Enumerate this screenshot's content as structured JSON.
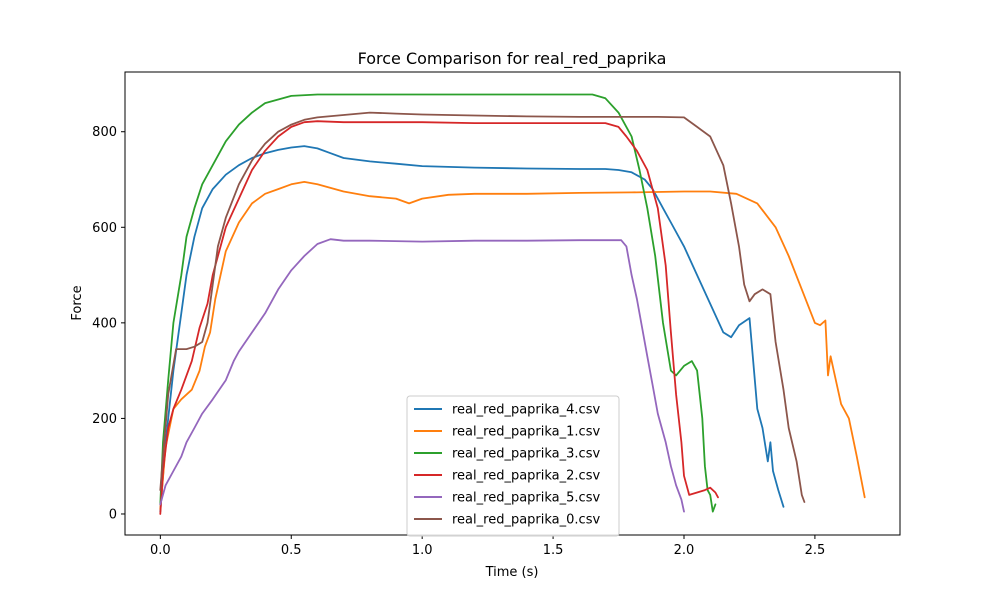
{
  "chart_data": {
    "type": "line",
    "title": "Force Comparison for real_red_paprika",
    "xlabel": "Time (s)",
    "ylabel": "Force",
    "xlim": [
      -0.135,
      2.825
    ],
    "ylim": [
      -44,
      925
    ],
    "xticks": [
      0.0,
      0.5,
      1.0,
      1.5,
      2.0,
      2.5
    ],
    "xtick_labels": [
      "0.0",
      "0.5",
      "1.0",
      "1.5",
      "2.0",
      "2.5"
    ],
    "yticks": [
      0,
      200,
      400,
      600,
      800
    ],
    "ytick_labels": [
      "0",
      "200",
      "400",
      "600",
      "800"
    ],
    "grid": false,
    "legend_position": "bottom-center",
    "series": [
      {
        "name": "real_red_paprika_4.csv",
        "color": "#1f77b4",
        "x": [
          0.0,
          0.02,
          0.05,
          0.08,
          0.1,
          0.13,
          0.16,
          0.2,
          0.25,
          0.3,
          0.35,
          0.4,
          0.45,
          0.5,
          0.55,
          0.6,
          0.65,
          0.7,
          0.8,
          0.9,
          1.0,
          1.2,
          1.4,
          1.6,
          1.7,
          1.75,
          1.8,
          1.85,
          1.88,
          1.92,
          1.95,
          2.0,
          2.05,
          2.1,
          2.15,
          2.18,
          2.21,
          2.25,
          2.28,
          2.3,
          2.32,
          2.33,
          2.34,
          2.36,
          2.38
        ],
        "y": [
          5,
          150,
          300,
          420,
          500,
          580,
          640,
          680,
          710,
          730,
          745,
          755,
          762,
          767,
          770,
          765,
          755,
          745,
          738,
          733,
          728,
          725,
          723,
          722,
          722,
          720,
          715,
          700,
          680,
          640,
          610,
          560,
          500,
          440,
          380,
          370,
          395,
          410,
          220,
          180,
          110,
          150,
          90,
          50,
          15
        ]
      },
      {
        "name": "real_red_paprika_1.csv",
        "color": "#ff7f0e",
        "x": [
          0.0,
          0.02,
          0.05,
          0.08,
          0.12,
          0.15,
          0.17,
          0.19,
          0.21,
          0.25,
          0.3,
          0.35,
          0.4,
          0.45,
          0.5,
          0.55,
          0.6,
          0.7,
          0.8,
          0.9,
          0.95,
          1.0,
          1.1,
          1.2,
          1.4,
          1.6,
          1.8,
          2.0,
          2.1,
          2.2,
          2.28,
          2.35,
          2.4,
          2.45,
          2.5,
          2.52,
          2.54,
          2.55,
          2.56,
          2.6,
          2.63,
          2.66,
          2.69
        ],
        "y": [
          10,
          140,
          220,
          240,
          260,
          300,
          350,
          380,
          450,
          550,
          610,
          650,
          670,
          680,
          690,
          695,
          690,
          675,
          665,
          660,
          650,
          660,
          668,
          670,
          670,
          672,
          673,
          675,
          675,
          670,
          650,
          600,
          540,
          470,
          400,
          395,
          405,
          290,
          330,
          230,
          200,
          120,
          35
        ]
      },
      {
        "name": "real_red_paprika_3.csv",
        "color": "#2ca02c",
        "x": [
          0.0,
          0.01,
          0.03,
          0.05,
          0.08,
          0.1,
          0.13,
          0.16,
          0.2,
          0.25,
          0.3,
          0.35,
          0.4,
          0.5,
          0.6,
          0.8,
          1.0,
          1.2,
          1.4,
          1.6,
          1.65,
          1.7,
          1.75,
          1.8,
          1.83,
          1.86,
          1.89,
          1.92,
          1.95,
          1.97,
          2.0,
          2.03,
          2.05,
          2.07,
          2.08,
          2.09,
          2.1,
          2.11,
          2.12
        ],
        "y": [
          20,
          150,
          280,
          400,
          500,
          580,
          640,
          690,
          730,
          780,
          815,
          840,
          860,
          875,
          878,
          878,
          878,
          878,
          878,
          878,
          878,
          870,
          840,
          790,
          720,
          640,
          540,
          400,
          300,
          290,
          310,
          320,
          300,
          200,
          100,
          50,
          40,
          5,
          20
        ]
      },
      {
        "name": "real_red_paprika_2.csv",
        "color": "#d62728",
        "x": [
          0.0,
          0.01,
          0.03,
          0.05,
          0.08,
          0.12,
          0.15,
          0.18,
          0.2,
          0.25,
          0.3,
          0.35,
          0.4,
          0.45,
          0.5,
          0.55,
          0.6,
          0.7,
          0.8,
          1.0,
          1.2,
          1.4,
          1.6,
          1.7,
          1.75,
          1.78,
          1.82,
          1.86,
          1.9,
          1.93,
          1.95,
          1.97,
          1.99,
          2.0,
          2.02,
          2.05,
          2.08,
          2.1,
          2.12,
          2.13
        ],
        "y": [
          0,
          90,
          180,
          220,
          260,
          320,
          390,
          440,
          500,
          600,
          660,
          720,
          760,
          790,
          810,
          820,
          822,
          820,
          820,
          820,
          818,
          818,
          818,
          818,
          810,
          790,
          760,
          720,
          640,
          520,
          380,
          250,
          150,
          80,
          40,
          45,
          50,
          55,
          45,
          35
        ]
      },
      {
        "name": "real_red_paprika_5.csv",
        "color": "#9467bd",
        "x": [
          0.0,
          0.02,
          0.05,
          0.08,
          0.1,
          0.13,
          0.16,
          0.2,
          0.25,
          0.28,
          0.3,
          0.35,
          0.4,
          0.45,
          0.5,
          0.55,
          0.6,
          0.65,
          0.7,
          0.8,
          1.0,
          1.2,
          1.4,
          1.6,
          1.7,
          1.76,
          1.78,
          1.8,
          1.82,
          1.84,
          1.86,
          1.88,
          1.9,
          1.93,
          1.95,
          1.97,
          1.99,
          2.0
        ],
        "y": [
          20,
          60,
          90,
          120,
          150,
          180,
          210,
          240,
          280,
          320,
          340,
          380,
          420,
          470,
          510,
          540,
          565,
          575,
          572,
          572,
          570,
          572,
          572,
          573,
          573,
          573,
          560,
          500,
          450,
          390,
          330,
          270,
          210,
          150,
          100,
          60,
          30,
          5
        ]
      },
      {
        "name": "real_red_paprika_0.csv",
        "color": "#8c564b",
        "x": [
          0.0,
          0.01,
          0.03,
          0.06,
          0.08,
          0.1,
          0.13,
          0.16,
          0.18,
          0.2,
          0.22,
          0.25,
          0.3,
          0.35,
          0.4,
          0.45,
          0.5,
          0.55,
          0.6,
          0.7,
          0.8,
          0.9,
          1.0,
          1.2,
          1.4,
          1.6,
          1.7,
          1.8,
          1.9,
          2.0,
          2.05,
          2.1,
          2.15,
          2.18,
          2.21,
          2.23,
          2.25,
          2.27,
          2.3,
          2.33,
          2.35,
          2.38,
          2.4,
          2.43,
          2.45,
          2.46
        ],
        "y": [
          50,
          120,
          250,
          345,
          345,
          345,
          350,
          360,
          400,
          480,
          560,
          620,
          690,
          740,
          775,
          800,
          815,
          825,
          830,
          835,
          840,
          838,
          836,
          834,
          832,
          831,
          831,
          831,
          831,
          830,
          810,
          790,
          730,
          650,
          560,
          480,
          445,
          460,
          470,
          460,
          360,
          260,
          180,
          110,
          40,
          25
        ]
      }
    ]
  }
}
